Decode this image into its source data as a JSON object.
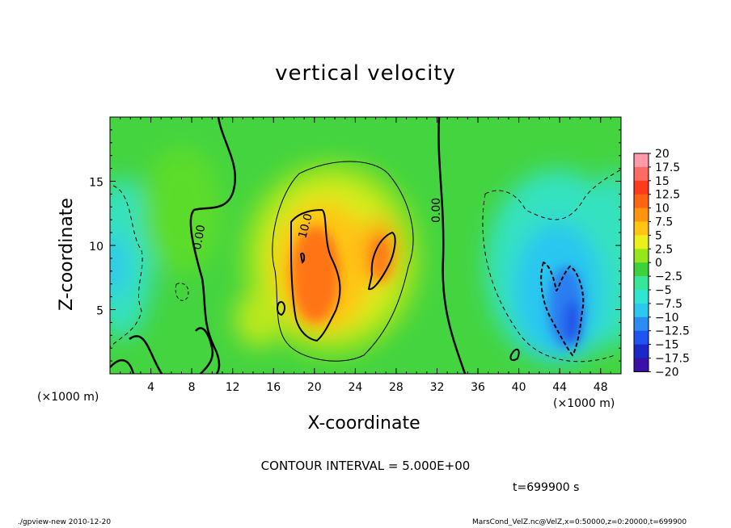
{
  "chart_data": {
    "type": "heatmap",
    "title": "vertical velocity",
    "xlabel": "X-coordinate",
    "ylabel": "Z-coordinate",
    "x_units_left": "(×1000 m)",
    "x_units_right": "(×1000 m)",
    "xlim": [
      0,
      50
    ],
    "ylim": [
      0,
      20
    ],
    "x_ticks": [
      4,
      8,
      12,
      16,
      20,
      24,
      28,
      32,
      36,
      40,
      44,
      48
    ],
    "y_ticks": [
      5,
      10,
      15
    ],
    "colorbar": {
      "levels": [
        "20",
        "17.5",
        "15",
        "12.5",
        "10",
        "7.5",
        "5",
        "2.5",
        "0",
        "-2.5",
        "-5",
        "-7.5",
        "-10",
        "-12.5",
        "-15",
        "-17.5",
        "-20"
      ],
      "colors": [
        "#ff9aa8",
        "#ff6a64",
        "#ff3a1e",
        "#ff6412",
        "#ff9410",
        "#ffc414",
        "#ecf01a",
        "#96e61c",
        "#3ed23a",
        "#38e69a",
        "#30e6d2",
        "#2cc8f0",
        "#2c8cf4",
        "#2054f0",
        "#1a28c8",
        "#3a10a8",
        "#6a12b8"
      ]
    },
    "contour_labels": [
      "0.00",
      "10.0",
      "0.00"
    ],
    "contour_interval": "CONTOUR INTERVAL = 5.000E+00",
    "time": "t=699900 s"
  },
  "footer": {
    "left": "./gpview-new   2010-12-20",
    "right": "MarsCond_VelZ.nc@VelZ,x=0:50000,z=0:20000,t=699900"
  }
}
